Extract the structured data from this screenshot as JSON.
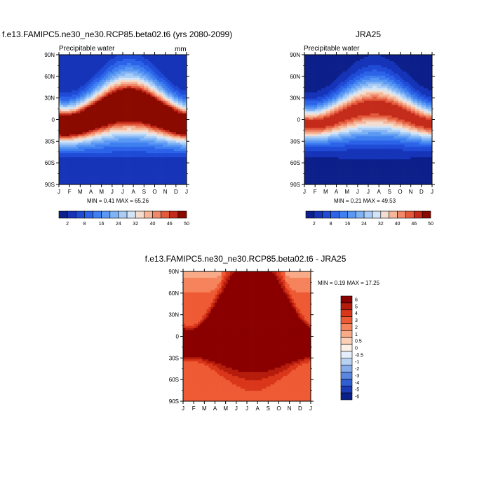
{
  "chart_data": [
    {
      "type": "heatmap",
      "title": "f.e13.FAMIPC5.ne30_ne30.RCP85.beta02.t6 (yrs 2080-2099)",
      "variable": "Precipitable water",
      "units": "mm",
      "x_ticks": [
        "J",
        "F",
        "M",
        "A",
        "M",
        "J",
        "J",
        "A",
        "S",
        "O",
        "N",
        "D",
        "J"
      ],
      "y_ticks": [
        "90N",
        "60N",
        "30N",
        "0",
        "30S",
        "60S",
        "90S"
      ],
      "stats": "MIN =   0.41 MAX =  65.26",
      "colorbar": {
        "orientation": "horizontal",
        "levels": [
          2,
          5,
          8,
          12,
          16,
          20,
          24,
          28,
          32,
          36,
          40,
          43,
          46,
          49,
          50
        ],
        "labels": [
          "2",
          "8",
          "16",
          "24",
          "32",
          "40",
          "46",
          "50"
        ]
      }
    },
    {
      "type": "heatmap",
      "title": "JRA25",
      "variable": "Precipitable water",
      "x_ticks": [
        "J",
        "F",
        "M",
        "A",
        "M",
        "J",
        "J",
        "A",
        "S",
        "O",
        "N",
        "D",
        "J"
      ],
      "y_ticks": [
        "90N",
        "60N",
        "30N",
        "0",
        "30S",
        "60S",
        "90S"
      ],
      "stats": "MIN =   0.21 MAX =  49.53",
      "colorbar": {
        "orientation": "horizontal",
        "levels": [
          2,
          5,
          8,
          12,
          16,
          20,
          24,
          28,
          32,
          36,
          40,
          43,
          46,
          49,
          50
        ],
        "labels": [
          "2",
          "8",
          "16",
          "24",
          "32",
          "40",
          "46",
          "50"
        ]
      }
    },
    {
      "type": "heatmap",
      "title": "f.e13.FAMIPC5.ne30_ne30.RCP85.beta02.t6 - JRA25",
      "x_ticks": [
        "J",
        "F",
        "M",
        "A",
        "M",
        "J",
        "J",
        "A",
        "S",
        "O",
        "N",
        "D",
        "J"
      ],
      "y_ticks": [
        "90N",
        "60N",
        "30N",
        "0",
        "30S",
        "60S",
        "90S"
      ],
      "stats": "MIN =   0.19 MAX =  17.25",
      "colorbar": {
        "orientation": "vertical",
        "levels": [
          -6,
          -5,
          -4,
          -3,
          -2,
          -1,
          -0.5,
          0,
          0.5,
          1,
          2,
          3,
          4,
          5,
          6
        ],
        "labels": [
          "6",
          "5",
          "4",
          "3",
          "2",
          "1",
          "0.5",
          "0",
          "-0.5",
          "-1",
          "-2",
          "-3",
          "-4",
          "-5",
          "-6"
        ]
      }
    }
  ],
  "palettes": {
    "field": [
      "#0d1f8a",
      "#1634b8",
      "#1f4bd6",
      "#2c63e8",
      "#3f7ff0",
      "#5a98f3",
      "#7fb3f5",
      "#a9cdf6",
      "#d3e4f7",
      "#f4dccf",
      "#f5b699",
      "#f0896a",
      "#e35a3d",
      "#c42b1a",
      "#8a0a00"
    ],
    "diff": [
      "#8a0000",
      "#b51c0c",
      "#d9361a",
      "#ee5a34",
      "#f5835c",
      "#f9ab88",
      "#fbd0b6",
      "#fdf0e6",
      "#e6eefb",
      "#b9d1f3",
      "#87acec",
      "#5a86e0",
      "#2f5fd3",
      "#1a3ab6",
      "#0a1f8a"
    ]
  }
}
